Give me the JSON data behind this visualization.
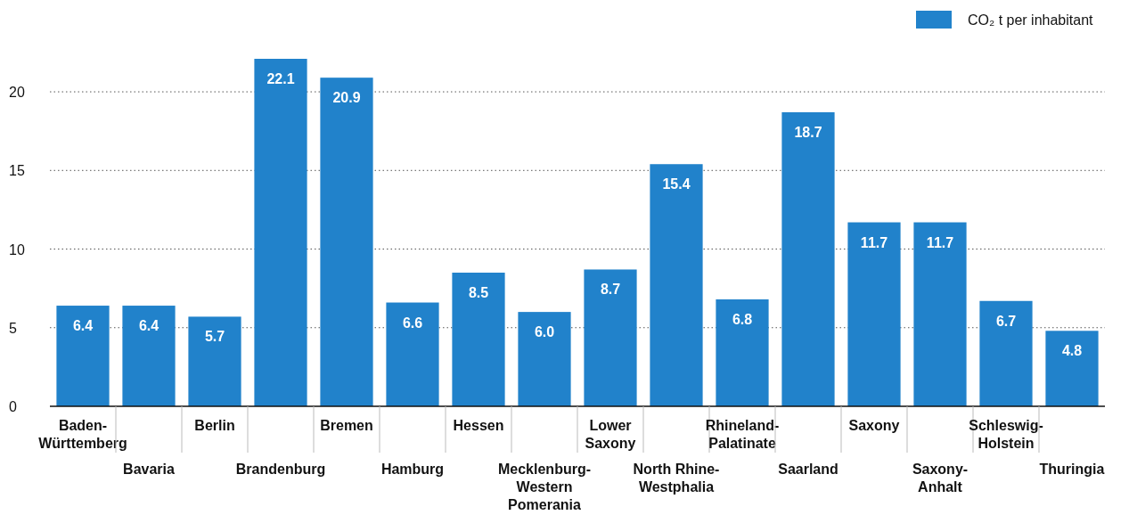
{
  "chart_data": {
    "type": "bar",
    "categories": [
      "Baden-\nWürttemberg",
      "Bavaria",
      "Berlin",
      "Brandenburg",
      "Bremen",
      "Hamburg",
      "Hessen",
      "Mecklenburg-\nWestern\nPomerania",
      "Lower\nSaxony",
      "North Rhine-\nWestphalia",
      "Rhineland-\nPalatinate",
      "Saarland",
      "Saxony",
      "Saxony-\nAnhalt",
      "Schleswig-\nHolstein",
      "Thuringia"
    ],
    "series": [
      {
        "name": "CO₂ t per inhabitant",
        "color": "#2182cb",
        "values": [
          6.4,
          6.4,
          5.7,
          22.1,
          20.9,
          6.6,
          8.5,
          6.0,
          8.7,
          15.4,
          6.8,
          18.7,
          11.7,
          11.7,
          6.7,
          4.8
        ]
      }
    ],
    "value_labels": [
      "6.4",
      "6.4",
      "5.7",
      "22.1",
      "20.9",
      "6.6",
      "8.5",
      "6.0",
      "8.7",
      "15.4",
      "6.8",
      "18.7",
      "11.7",
      "11.7",
      "6.7",
      "4.8"
    ],
    "ylim": [
      0,
      22.1
    ],
    "yticks": [
      0,
      5,
      10,
      15,
      20
    ],
    "grid": "y",
    "legend": "top right"
  }
}
